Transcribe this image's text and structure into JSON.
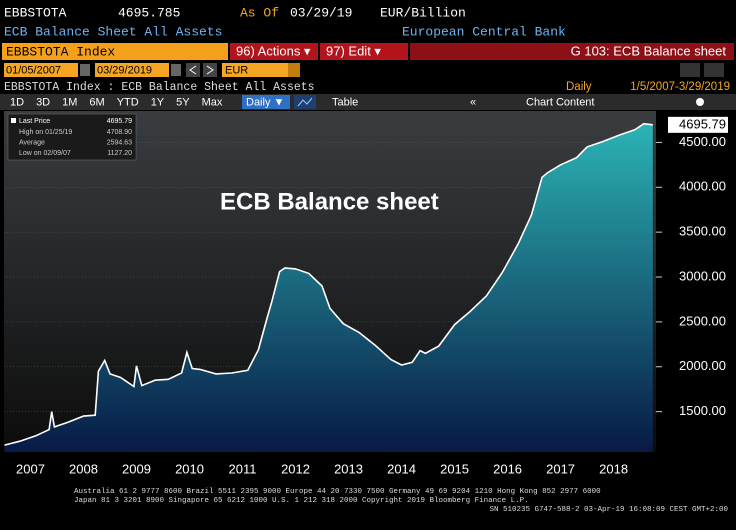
{
  "header": {
    "ticker": "EBBSTOTA",
    "price": "4695.785",
    "as_of": "As Of",
    "date": "03/29/19",
    "units": "EUR/Billion",
    "name": "ECB Balance Sheet All Assets",
    "source": "European Central Bank"
  },
  "toolbar": {
    "security": "EBBSTOTA Index",
    "actions": "96) Actions ▾",
    "edit": "97) Edit ▾",
    "page": "G 103: ECB Balance sheet",
    "start": "01/05/2007",
    "end": "03/29/2019",
    "currency": "EUR",
    "description": "EBBSTOTA Index : ECB Balance Sheet All Assets",
    "period": "Daily",
    "range": "1/5/2007-3/29/2019",
    "tabs": [
      "1D",
      "3D",
      "1M",
      "6M",
      "YTD",
      "1Y",
      "5Y",
      "Max"
    ],
    "frequency": "Daily ▼",
    "table": "Table",
    "chart_content": "Chart Content"
  },
  "chart_data": {
    "type": "area",
    "annotation": "ECB Balance sheet",
    "x": [
      2007.01,
      2007.3,
      2007.6,
      2007.85,
      2007.9,
      2007.95,
      2008.2,
      2008.5,
      2008.72,
      2008.78,
      2008.9,
      2009.0,
      2009.2,
      2009.45,
      2009.5,
      2009.6,
      2009.85,
      2010.1,
      2010.35,
      2010.45,
      2010.55,
      2010.7,
      2011.0,
      2011.3,
      2011.6,
      2011.8,
      2011.97,
      2012.05,
      2012.2,
      2012.3,
      2012.5,
      2012.75,
      2013.0,
      2013.15,
      2013.4,
      2013.7,
      2014.0,
      2014.3,
      2014.5,
      2014.7,
      2014.85,
      2014.95,
      2015.2,
      2015.5,
      2015.8,
      2016.1,
      2016.4,
      2016.7,
      2016.95,
      2017.15,
      2017.25,
      2017.5,
      2017.8,
      2018.0,
      2018.3,
      2018.6,
      2018.9,
      2019.07,
      2019.24
    ],
    "series": [
      {
        "name": "Last Price",
        "color": "#ffffff",
        "fill_top": "#2bb3b5",
        "fill_bottom": "#081a45",
        "values": [
          1127.2,
          1170,
          1230,
          1300,
          1500,
          1330,
          1380,
          1450,
          1460,
          1950,
          2070,
          1920,
          1880,
          1780,
          2010,
          1790,
          1850,
          1860,
          1930,
          2160,
          1980,
          1970,
          1920,
          1930,
          1960,
          2190,
          2560,
          2720,
          3060,
          3100,
          3090,
          3040,
          2900,
          2650,
          2480,
          2380,
          2240,
          2080,
          2020,
          2050,
          2180,
          2150,
          2230,
          2470,
          2620,
          2790,
          3050,
          3370,
          3690,
          4110,
          4160,
          4250,
          4330,
          4450,
          4510,
          4580,
          4640,
          4708.9,
          4695.79
        ]
      }
    ],
    "last_label": "4695.79",
    "stats": [
      {
        "name": "High on 01/25/19",
        "label": "4708.90"
      },
      {
        "name": "Average",
        "label": "2594.63"
      },
      {
        "name": "Low on 02/09/07",
        "label": "1127.20"
      }
    ],
    "xlim": [
      2007,
      2019.3
    ],
    "ylim": [
      1050,
      4850
    ],
    "xticks": [
      {
        "value": 2007.5,
        "label": "2007"
      },
      {
        "value": 2008.5,
        "label": "2008"
      },
      {
        "value": 2009.5,
        "label": "2009"
      },
      {
        "value": 2010.5,
        "label": "2010"
      },
      {
        "value": 2011.5,
        "label": "2011"
      },
      {
        "value": 2012.5,
        "label": "2012"
      },
      {
        "value": 2013.5,
        "label": "2013"
      },
      {
        "value": 2014.5,
        "label": "2014"
      },
      {
        "value": 2015.5,
        "label": "2015"
      },
      {
        "value": 2016.5,
        "label": "2016"
      },
      {
        "value": 2017.5,
        "label": "2017"
      },
      {
        "value": 2018.5,
        "label": "2018"
      }
    ],
    "yticks": [
      {
        "value": 1500,
        "label": "1500.00"
      },
      {
        "value": 2000,
        "label": "2000.00"
      },
      {
        "value": 2500,
        "label": "2500.00"
      },
      {
        "value": 3000,
        "label": "3000.00"
      },
      {
        "value": 3500,
        "label": "3500.00"
      },
      {
        "value": 4000,
        "label": "4000.00"
      },
      {
        "value": 4500,
        "label": "4500.00"
      }
    ],
    "grid": true
  },
  "footer": [
    "Australia 61 2 9777 8600 Brazil 5511 2395 9000 Europe 44 20 7330 7500 Germany 49 69 9204 1210 Hong Kong 852 2977 6000",
    "Japan 81 3 3201 8900      Singapore 65 6212 1000      U.S. 1 212 318 2000          Copyright 2019 Bloomberg Finance L.P.",
    "SN 510235 G747-588-2 03-Apr-19 16:08:09 CEST GMT+2:00"
  ]
}
